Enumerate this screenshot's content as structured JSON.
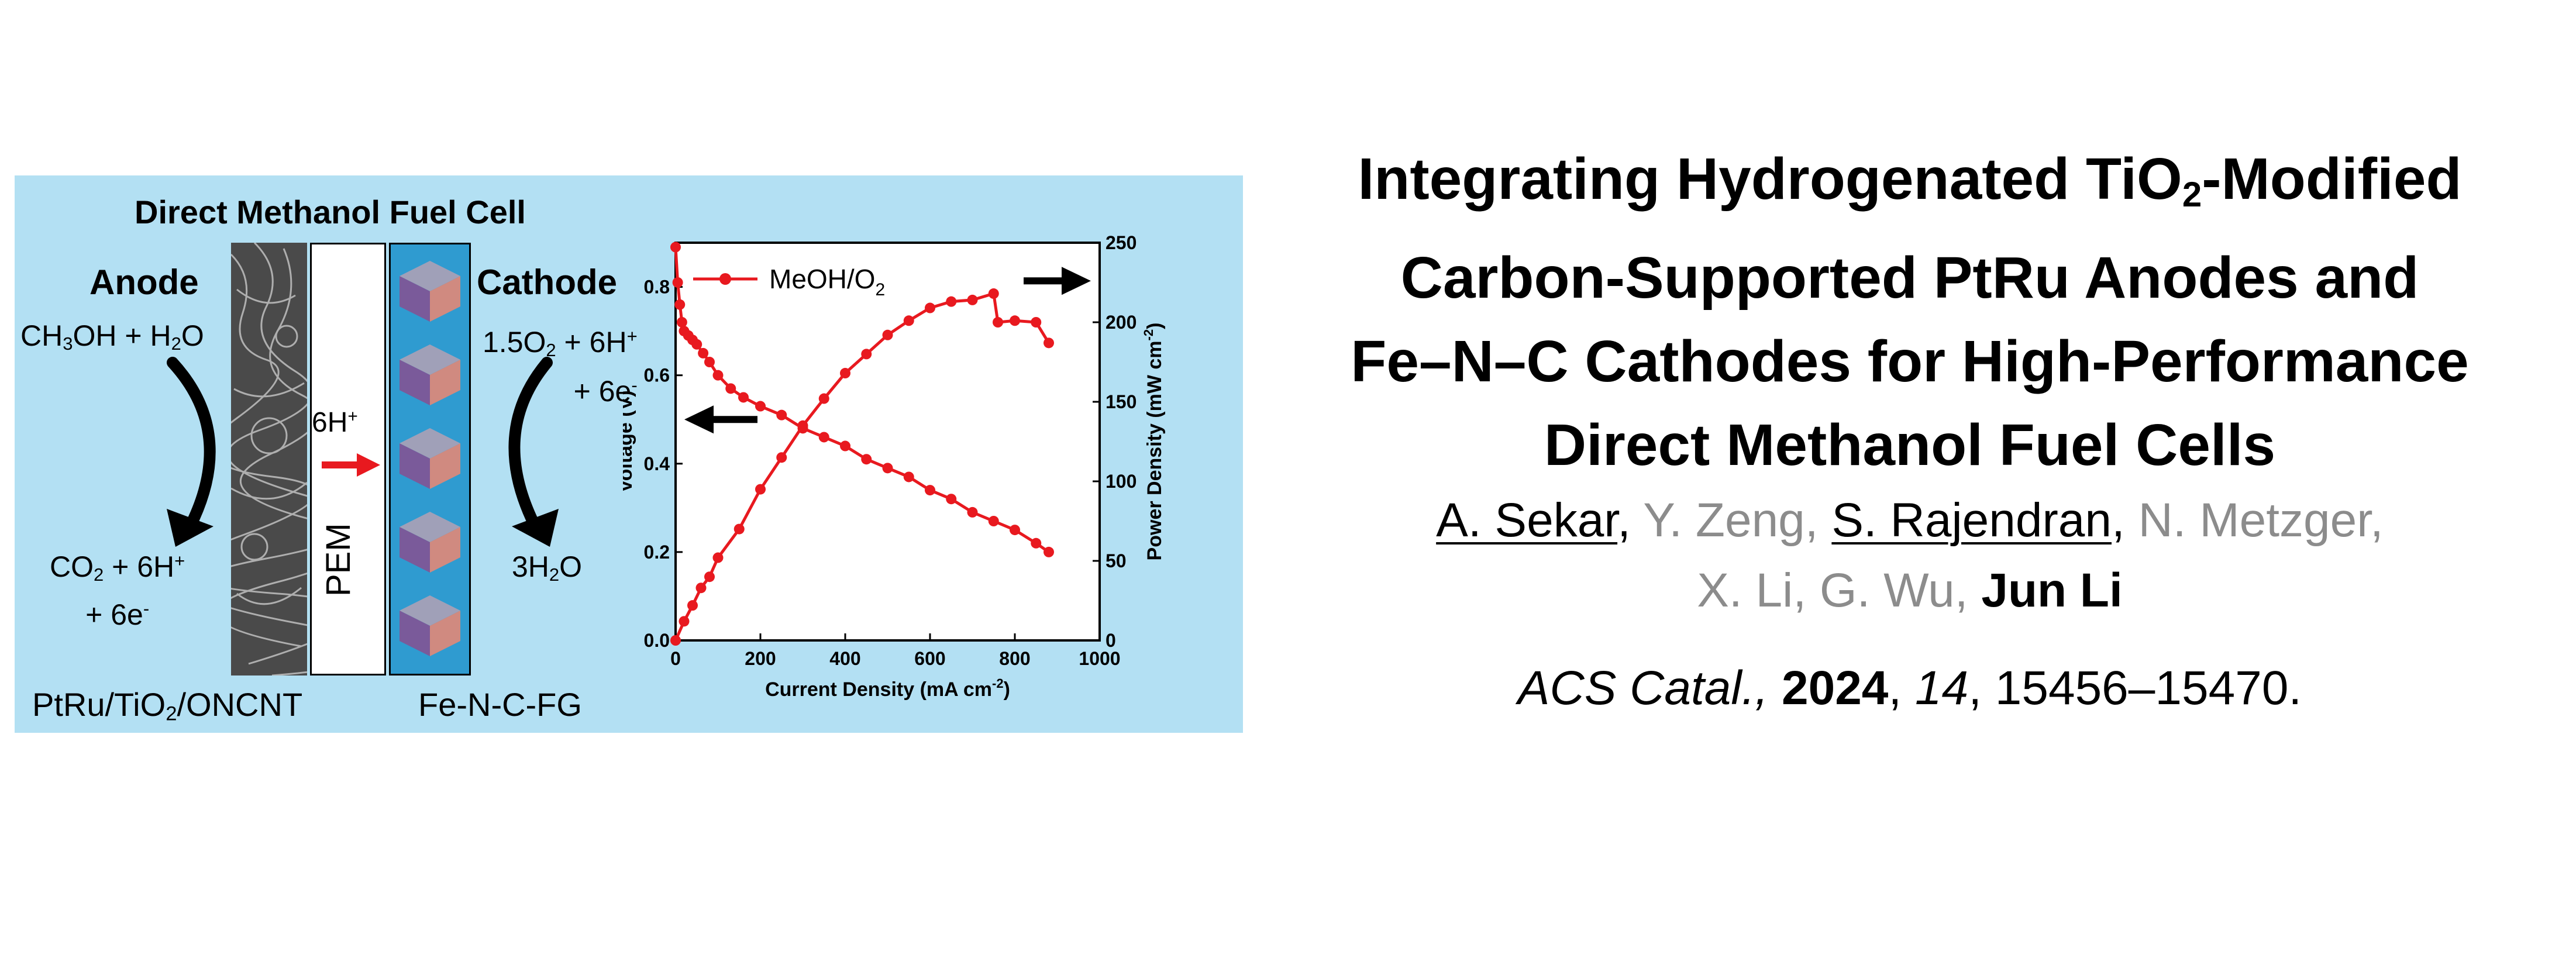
{
  "toc": {
    "cell_title": "Direct Methanol Fuel Cell",
    "anode_label": "Anode",
    "cathode_label": "Cathode",
    "anode_reactant_a": "CH",
    "anode_reactant_a_sub": "3",
    "anode_reactant_b": "OH + H",
    "anode_reactant_b_sub": "2",
    "anode_reactant_c": "O",
    "anode_product_a": "CO",
    "anode_product_a_sub": "2",
    "anode_product_b": " + 6H",
    "anode_product_b_sup": "+",
    "anode_product_line2": "+ 6e",
    "anode_product_line2_sup": "-",
    "cathode_reactant_a": "1.5O",
    "cathode_reactant_a_sub": "2",
    "cathode_reactant_b": " + 6H",
    "cathode_reactant_b_sup": "+",
    "cathode_reactant_line2": "+ 6e",
    "cathode_reactant_line2_sup": "-",
    "cathode_product_a": "3H",
    "cathode_product_a_sub": "2",
    "cathode_product_b": "O",
    "proton_label": "6H",
    "proton_label_sup": "+",
    "pem_label": "PEM",
    "anode_material_a": "PtRu/TiO",
    "anode_material_a_sub": "2",
    "anode_material_b": "/ONCNT",
    "cathode_material": "Fe-N-C-FG",
    "colors": {
      "panel_bg": "#b3e0f3",
      "data_red": "#e8191f",
      "proton_arrow": "#e8191f",
      "cathode_layer": "#2f9bd0",
      "cube_top": "#a0a0b8",
      "cube_left": "#7a5a9a",
      "cube_right": "#d08a80"
    },
    "icons": [
      "reaction-arrow-icon",
      "proton-arrow-icon",
      "catalyst-cube-icon",
      "axis-direction-arrow-icon"
    ]
  },
  "chart_data": {
    "type": "line",
    "xlabel": "Current Density (mA cm",
    "xlabel_sup": "-2",
    "xlabel_end": ")",
    "ylabel_left": "Voltage (V)",
    "ylabel_right": "Power Density (mW cm",
    "ylabel_right_sup": "-2",
    "ylabel_right_end": ")",
    "xlim": [
      0,
      1000
    ],
    "ylim_left": [
      0.0,
      0.9
    ],
    "ylim_right": [
      0,
      250
    ],
    "x_ticks": [
      "0",
      "200",
      "400",
      "600",
      "800",
      "1000"
    ],
    "y_left_ticks": [
      "0.0",
      "0.2",
      "0.4",
      "0.6",
      "0.8"
    ],
    "y_right_ticks": [
      "0",
      "50",
      "100",
      "150",
      "200",
      "250"
    ],
    "legend_label": "MeOH/O",
    "legend_label_sub": "2",
    "legend_position": "top-left",
    "series": [
      {
        "name": "voltage",
        "axis": "left",
        "x": [
          0,
          5,
          10,
          15,
          20,
          30,
          40,
          50,
          65,
          80,
          100,
          130,
          160,
          200,
          250,
          300,
          350,
          400,
          450,
          500,
          550,
          600,
          650,
          700,
          750,
          800,
          850,
          880
        ],
        "y": [
          0.89,
          0.81,
          0.76,
          0.72,
          0.7,
          0.69,
          0.68,
          0.67,
          0.65,
          0.63,
          0.6,
          0.57,
          0.55,
          0.53,
          0.51,
          0.48,
          0.46,
          0.44,
          0.41,
          0.39,
          0.37,
          0.34,
          0.32,
          0.29,
          0.27,
          0.25,
          0.22,
          0.2
        ]
      },
      {
        "name": "power",
        "axis": "right",
        "x": [
          0,
          20,
          40,
          60,
          80,
          100,
          150,
          200,
          250,
          300,
          350,
          400,
          450,
          500,
          550,
          600,
          650,
          700,
          750,
          760,
          800,
          850,
          880
        ],
        "y": [
          0,
          12,
          22,
          33,
          40,
          52,
          70,
          95,
          115,
          135,
          152,
          168,
          180,
          192,
          201,
          209,
          213,
          214,
          218,
          200,
          201,
          200,
          187
        ]
      }
    ]
  },
  "paper": {
    "title_line1_a": "Integrating Hydrogenated TiO",
    "title_line1_sub": "2",
    "title_line1_b": "-Modified",
    "title_line2": "Carbon-Supported PtRu Anodes and",
    "title_line3": "Fe–N–C Cathodes for High-Performance",
    "title_line4": "Direct Methanol Fuel Cells",
    "author1": "A. Sekar",
    "author2": "Y. Zeng",
    "author3": "S. Rajendran",
    "author4": "N. Metzger",
    "author5": "X. Li",
    "author6": "G. Wu",
    "author7": "Jun Li",
    "sep": ", ",
    "journal": "ACS Catal.,",
    "year": "2024",
    "volume": "14",
    "pages": ", 15456–15470."
  }
}
